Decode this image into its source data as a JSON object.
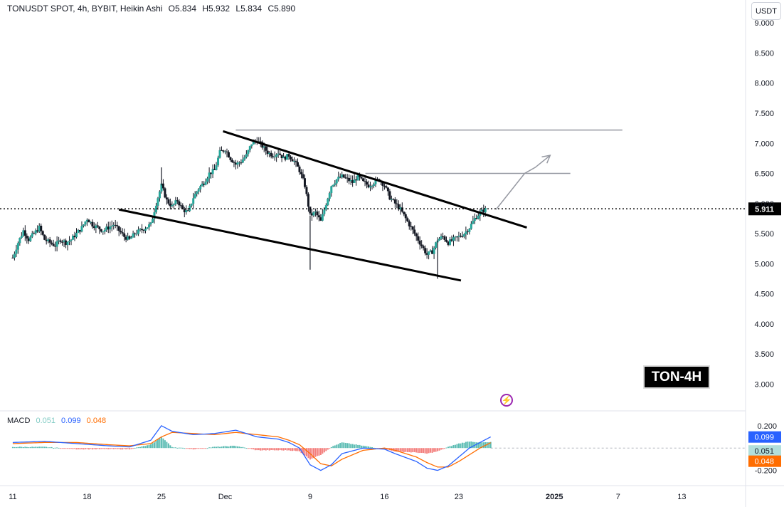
{
  "header": {
    "symbol": "TONUSDT SPOT, 4h, BYBIT, Heikin Ashi",
    "open": "O5.834",
    "high": "H5.932",
    "low": "L5.834",
    "close": "C5.890",
    "currency_button": "USDT"
  },
  "badge": {
    "label": "TON-4H"
  },
  "icons": {
    "bolt": "lightning-icon"
  },
  "colors": {
    "up": "#26a69a",
    "down": "#131722",
    "macd_line": "#2962ff",
    "signal_line": "#ff6d00",
    "hist_pos": "#26a69a",
    "hist_neg": "#ef5350",
    "level": "#9598a1",
    "projection": "#9598a1"
  },
  "macd_header": {
    "title": "MACD",
    "hist": "0.051",
    "macd": "0.099",
    "signal": "0.048"
  },
  "chart_data": [
    {
      "type": "candlestick",
      "title": "TONUSDT SPOT, 4h, BYBIT, Heikin Ashi",
      "y_ticks": [
        "9.000",
        "8.500",
        "8.000",
        "7.500",
        "7.000",
        "6.500",
        "6.000",
        "5.500",
        "5.000",
        "4.500",
        "4.000",
        "3.500",
        "3.000"
      ],
      "ylim": [
        2.85,
        9.05
      ],
      "x_ticks": [
        "11",
        "18",
        "25",
        "Dec",
        "9",
        "16",
        "23",
        "2025",
        "7",
        "13"
      ],
      "x_tick_days": [
        0,
        7,
        14,
        20,
        28,
        35,
        42,
        51,
        57,
        63
      ],
      "xlim_days": [
        -1.2,
        69
      ],
      "last_price": "5.911",
      "last_price_value": 5.911,
      "price_path": [
        [
          0.0,
          5.1
        ],
        [
          0.5,
          5.35
        ],
        [
          1.0,
          5.55
        ],
        [
          1.5,
          5.4
        ],
        [
          2.0,
          5.5
        ],
        [
          2.5,
          5.6
        ],
        [
          3.0,
          5.4
        ],
        [
          3.5,
          5.35
        ],
        [
          4.0,
          5.3
        ],
        [
          4.5,
          5.4
        ],
        [
          5.0,
          5.35
        ],
        [
          5.5,
          5.4
        ],
        [
          6.0,
          5.5
        ],
        [
          6.5,
          5.6
        ],
        [
          7.0,
          5.75
        ],
        [
          7.5,
          5.65
        ],
        [
          8.0,
          5.6
        ],
        [
          8.5,
          5.55
        ],
        [
          9.0,
          5.6
        ],
        [
          9.5,
          5.65
        ],
        [
          10.0,
          5.55
        ],
        [
          10.5,
          5.45
        ],
        [
          11.0,
          5.4
        ],
        [
          11.5,
          5.5
        ],
        [
          12.0,
          5.55
        ],
        [
          12.5,
          5.6
        ],
        [
          13.0,
          5.65
        ],
        [
          13.5,
          6.0
        ],
        [
          14.0,
          6.3
        ],
        [
          14.5,
          6.05
        ],
        [
          15.0,
          5.95
        ],
        [
          15.5,
          6.05
        ],
        [
          16.0,
          5.9
        ],
        [
          16.5,
          5.85
        ],
        [
          17.0,
          6.1
        ],
        [
          17.5,
          6.25
        ],
        [
          18.0,
          6.35
        ],
        [
          18.5,
          6.5
        ],
        [
          19.0,
          6.55
        ],
        [
          19.5,
          6.85
        ],
        [
          20.0,
          6.9
        ],
        [
          20.5,
          6.75
        ],
        [
          21.0,
          6.65
        ],
        [
          21.5,
          6.7
        ],
        [
          22.0,
          6.8
        ],
        [
          22.5,
          7.0
        ],
        [
          23.0,
          7.05
        ],
        [
          23.5,
          6.95
        ],
        [
          24.0,
          6.85
        ],
        [
          24.5,
          6.8
        ],
        [
          25.0,
          6.85
        ],
        [
          25.5,
          6.75
        ],
        [
          26.0,
          6.8
        ],
        [
          26.5,
          6.7
        ],
        [
          27.0,
          6.55
        ],
        [
          27.5,
          6.3
        ],
        [
          28.0,
          5.8
        ],
        [
          28.5,
          5.85
        ],
        [
          29.0,
          5.7
        ],
        [
          29.5,
          6.0
        ],
        [
          30.0,
          6.3
        ],
        [
          30.5,
          6.4
        ],
        [
          31.0,
          6.45
        ],
        [
          31.5,
          6.4
        ],
        [
          32.0,
          6.35
        ],
        [
          32.5,
          6.45
        ],
        [
          33.0,
          6.35
        ],
        [
          33.5,
          6.3
        ],
        [
          34.0,
          6.35
        ],
        [
          34.5,
          6.4
        ],
        [
          35.0,
          6.3
        ],
        [
          35.5,
          6.1
        ],
        [
          36.0,
          6.0
        ],
        [
          36.5,
          5.9
        ],
        [
          37.0,
          5.75
        ],
        [
          37.5,
          5.6
        ],
        [
          38.0,
          5.45
        ],
        [
          38.5,
          5.3
        ],
        [
          39.0,
          5.15
        ],
        [
          39.5,
          5.2
        ],
        [
          40.0,
          5.4
        ],
        [
          40.5,
          5.45
        ],
        [
          41.0,
          5.35
        ],
        [
          41.5,
          5.4
        ],
        [
          42.0,
          5.45
        ],
        [
          42.5,
          5.5
        ],
        [
          43.0,
          5.6
        ],
        [
          43.5,
          5.75
        ],
        [
          44.0,
          5.85
        ],
        [
          44.5,
          5.9
        ]
      ],
      "wick_spikes": [
        [
          28.0,
          4.9
        ],
        [
          40.0,
          4.75
        ],
        [
          14.0,
          6.6
        ]
      ],
      "trendlines": [
        {
          "name": "upper",
          "from": [
            19.8,
            7.2
          ],
          "to": [
            48.4,
            5.6
          ]
        },
        {
          "name": "lower",
          "from": [
            10.0,
            5.9
          ],
          "to": [
            42.2,
            4.72
          ]
        }
      ],
      "levels": [
        {
          "y": 7.22,
          "from_day": 21.0,
          "to_day": 57.4
        },
        {
          "y": 6.5,
          "from_day": 33.2,
          "to_day": 52.5
        }
      ],
      "projection": [
        [
          45.5,
          5.9
        ],
        [
          48.2,
          6.5
        ],
        [
          49.2,
          6.6
        ],
        [
          50.6,
          6.8
        ]
      ]
    },
    {
      "type": "line",
      "title": "MACD",
      "y_ticks": [
        "0.200",
        "-0.200"
      ],
      "ylim": [
        -0.26,
        0.25
      ],
      "series": [
        {
          "name": "MACD",
          "points": [
            [
              0,
              0.05
            ],
            [
              3,
              0.06
            ],
            [
              6,
              0.04
            ],
            [
              9,
              0.02
            ],
            [
              11,
              0.01
            ],
            [
              13,
              0.07
            ],
            [
              14,
              0.2
            ],
            [
              15,
              0.15
            ],
            [
              17,
              0.12
            ],
            [
              19,
              0.13
            ],
            [
              21,
              0.16
            ],
            [
              23,
              0.1
            ],
            [
              25,
              0.08
            ],
            [
              26,
              0.05
            ],
            [
              27,
              0.0
            ],
            [
              28,
              -0.15
            ],
            [
              29,
              -0.2
            ],
            [
              30,
              -0.15
            ],
            [
              31,
              -0.05
            ],
            [
              33,
              0.0
            ],
            [
              35,
              -0.01
            ],
            [
              36,
              -0.05
            ],
            [
              38,
              -0.12
            ],
            [
              39,
              -0.18
            ],
            [
              40,
              -0.2
            ],
            [
              41,
              -0.16
            ],
            [
              42,
              -0.08
            ],
            [
              43,
              0.0
            ],
            [
              44,
              0.05
            ],
            [
              45,
              0.1
            ]
          ]
        },
        {
          "name": "Signal",
          "points": [
            [
              0,
              0.04
            ],
            [
              3,
              0.05
            ],
            [
              6,
              0.05
            ],
            [
              9,
              0.03
            ],
            [
              11,
              0.02
            ],
            [
              13,
              0.04
            ],
            [
              14,
              0.1
            ],
            [
              15,
              0.14
            ],
            [
              17,
              0.13
            ],
            [
              19,
              0.12
            ],
            [
              21,
              0.14
            ],
            [
              23,
              0.12
            ],
            [
              25,
              0.1
            ],
            [
              26,
              0.07
            ],
            [
              27,
              0.03
            ],
            [
              28,
              -0.05
            ],
            [
              29,
              -0.14
            ],
            [
              30,
              -0.16
            ],
            [
              31,
              -0.1
            ],
            [
              33,
              -0.02
            ],
            [
              35,
              0.0
            ],
            [
              36,
              -0.02
            ],
            [
              38,
              -0.08
            ],
            [
              39,
              -0.13
            ],
            [
              40,
              -0.17
            ],
            [
              41,
              -0.17
            ],
            [
              42,
              -0.12
            ],
            [
              43,
              -0.06
            ],
            [
              44,
              0.0
            ],
            [
              45,
              0.048
            ]
          ]
        }
      ],
      "histogram_days": [
        0,
        45
      ],
      "hist_last": 0.051,
      "right_labels": [
        "0.099",
        "0.051",
        "0.048"
      ]
    }
  ]
}
